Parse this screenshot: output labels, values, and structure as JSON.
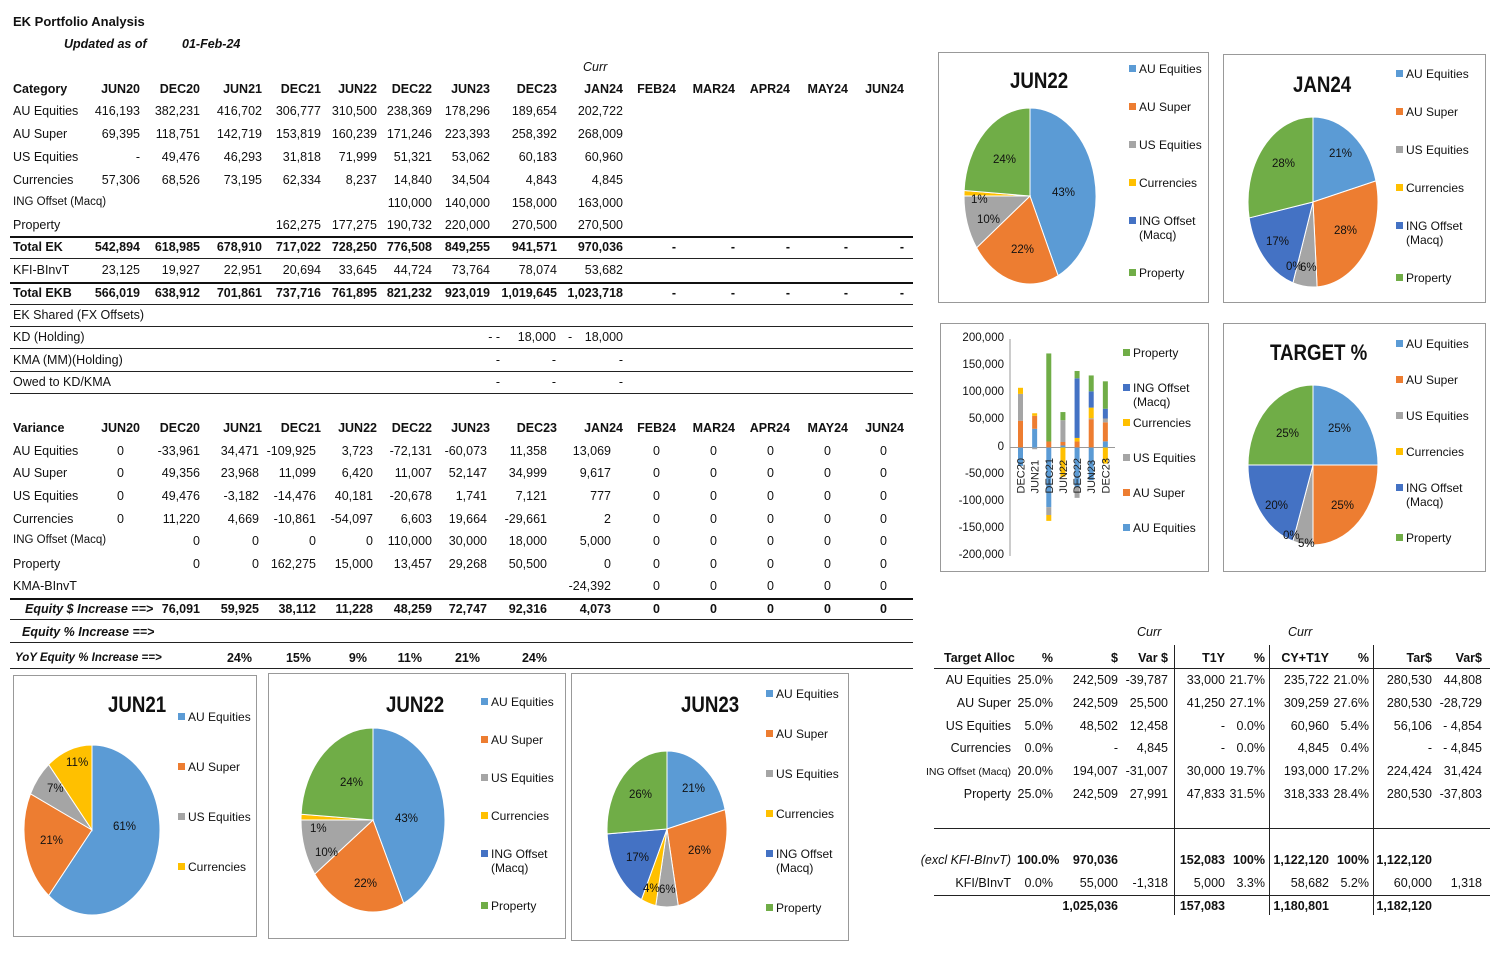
{
  "header": {
    "title": "EK Portfolio Analysis",
    "updated_label": "Updated as of",
    "updated_date": "01-Feb-24",
    "curr_label": "Curr"
  },
  "colors": {
    "au_equities": "#5b9bd5",
    "au_super": "#ed7d31",
    "us_equities": "#a5a5a5",
    "currencies": "#ffc000",
    "ing_offset": "#4472c4",
    "property": "#70ad47"
  },
  "periods": [
    "JUN20",
    "DEC20",
    "JUN21",
    "DEC21",
    "JUN22",
    "DEC22",
    "JUN23",
    "DEC23",
    "JAN24",
    "FEB24",
    "MAR24",
    "APR24",
    "MAY24",
    "JUN24"
  ],
  "holdings": {
    "header": "Category",
    "rows": [
      {
        "label": "AU Equities",
        "bold": false,
        "cells": [
          "416,193",
          "382,231",
          "416,702",
          "306,777",
          "310,500",
          "238,369",
          "178,296",
          "189,654",
          "202,722",
          "",
          "",
          "",
          "",
          ""
        ]
      },
      {
        "label": "AU Super",
        "bold": false,
        "cells": [
          "69,395",
          "118,751",
          "142,719",
          "153,819",
          "160,239",
          "171,246",
          "223,393",
          "258,392",
          "268,009",
          "",
          "",
          "",
          "",
          ""
        ]
      },
      {
        "label": "US Equities",
        "bold": false,
        "cells": [
          "-",
          "49,476",
          "46,293",
          "31,818",
          "71,999",
          "51,321",
          "53,062",
          "60,183",
          "60,960",
          "",
          "",
          "",
          "",
          ""
        ]
      },
      {
        "label": "Currencies",
        "bold": false,
        "cells": [
          "57,306",
          "68,526",
          "73,195",
          "62,334",
          "8,237",
          "14,840",
          "34,504",
          "4,843",
          "4,845",
          "",
          "",
          "",
          "",
          ""
        ]
      },
      {
        "label": "ING Offset (Macq)",
        "bold": false,
        "small": true,
        "cells": [
          "",
          "",
          "",
          "",
          "",
          "110,000",
          "140,000",
          "158,000",
          "163,000",
          "",
          "",
          "",
          "",
          ""
        ]
      },
      {
        "label": "Property",
        "bold": false,
        "cells": [
          "",
          "",
          "",
          "162,275",
          "177,275",
          "190,732",
          "220,000",
          "270,500",
          "270,500",
          "",
          "",
          "",
          "",
          ""
        ]
      },
      {
        "label": "Total EK",
        "bold": true,
        "cells": [
          "542,894",
          "618,985",
          "678,910",
          "717,022",
          "728,250",
          "776,508",
          "849,255",
          "941,571",
          "970,036",
          "-",
          "-",
          "-",
          "-",
          "-"
        ]
      },
      {
        "label": "KFI-BInvT",
        "bold": false,
        "cells": [
          "23,125",
          "19,927",
          "22,951",
          "20,694",
          "33,645",
          "44,724",
          "73,764",
          "78,074",
          "53,682",
          "",
          "",
          "",
          "",
          ""
        ]
      },
      {
        "label": "Total EKB",
        "bold": true,
        "cells": [
          "566,019",
          "638,912",
          "701,861",
          "737,716",
          "761,895",
          "821,232",
          "923,019",
          "1,019,645",
          "1,023,718",
          "-",
          "-",
          "-",
          "-",
          "-"
        ]
      }
    ]
  },
  "shared": {
    "title": "EK Shared (FX Offsets)",
    "rows": [
      {
        "label": "KD (Holding)",
        "cells": [
          "-  -",
          "18,000",
          "-",
          "18,000"
        ]
      },
      {
        "label": "KMA (MM)(Holding)",
        "cells": [
          "-",
          "-",
          "",
          "-"
        ]
      },
      {
        "label": "Owed to KD/KMA",
        "cells": [
          "-",
          "-",
          "",
          "-"
        ]
      }
    ]
  },
  "variance": {
    "header": "Variance",
    "rows": [
      {
        "label": "AU Equities",
        "cells": [
          "0",
          "-33,961",
          "34,471",
          "-109,925",
          "3,723",
          "-72,131",
          "-60,073",
          "11,358",
          "13,069",
          "0",
          "0",
          "0",
          "0",
          "0"
        ]
      },
      {
        "label": "AU Super",
        "cells": [
          "0",
          "49,356",
          "23,968",
          "11,099",
          "6,420",
          "11,007",
          "52,147",
          "34,999",
          "9,617",
          "0",
          "0",
          "0",
          "0",
          "0"
        ]
      },
      {
        "label": "US Equities",
        "cells": [
          "0",
          "49,476",
          "-3,182",
          "-14,476",
          "40,181",
          "-20,678",
          "1,741",
          "7,121",
          "777",
          "0",
          "0",
          "0",
          "0",
          "0"
        ]
      },
      {
        "label": "Currencies",
        "cells": [
          "0",
          "11,220",
          "4,669",
          "-10,861",
          "-54,097",
          "6,603",
          "19,664",
          "-29,661",
          "2",
          "0",
          "0",
          "0",
          "0",
          "0"
        ]
      },
      {
        "label": "ING Offset (Macq)",
        "small": true,
        "cells": [
          "",
          "0",
          "0",
          "0",
          "0",
          "110,000",
          "30,000",
          "18,000",
          "5,000",
          "0",
          "0",
          "0",
          "0",
          "0"
        ]
      },
      {
        "label": "Property",
        "cells": [
          "",
          "0",
          "0",
          "162,275",
          "15,000",
          "13,457",
          "29,268",
          "50,500",
          "0",
          "0",
          "0",
          "0",
          "0",
          "0"
        ]
      },
      {
        "label": "KMA-BInvT",
        "cells": [
          "",
          "",
          "",
          "",
          "",
          "",
          "",
          "",
          "-24,392",
          "0",
          "0",
          "0",
          "0",
          "0"
        ]
      }
    ],
    "equity_increase": {
      "label": "Equity $ Increase ==>",
      "cells": [
        "",
        "76,091",
        "59,925",
        "38,112",
        "11,228",
        "48,259",
        "72,747",
        "92,316",
        "4,073",
        "0",
        "0",
        "0",
        "0",
        "0"
      ]
    },
    "equity_pct": {
      "label": "Equity % Increase ==>"
    },
    "yoy": {
      "label": "YoY Equity % Increase ==>",
      "cells": [
        "",
        "",
        "24%",
        "15%",
        "9%",
        "11%",
        "21%",
        "24%",
        "",
        "",
        "",
        "",
        "",
        ""
      ]
    }
  },
  "legend_labels": [
    "AU Equities",
    "AU Super",
    "US Equities",
    "Currencies",
    "ING Offset (Macq)",
    "Property"
  ],
  "pies": [
    {
      "title": "JUN22",
      "labels": [
        "43%",
        "22%",
        "10%",
        "1%",
        "24%"
      ]
    },
    {
      "title": "JAN24",
      "labels": [
        "21%",
        "28%",
        "6%",
        "0%",
        "17%",
        "28%"
      ]
    },
    {
      "title": "TARGET %",
      "labels": [
        "25%",
        "25%",
        "5%",
        "0%",
        "20%",
        "25%"
      ]
    },
    {
      "title": "JUN21",
      "labels": [
        "61%",
        "21%",
        "7%",
        "11%"
      ]
    },
    {
      "title": "JUN22",
      "labels": [
        "43%",
        "22%",
        "10%",
        "1%",
        "24%"
      ]
    },
    {
      "title": "JUN23",
      "labels": [
        "21%",
        "26%",
        "6%",
        "4%",
        "17%",
        "26%"
      ]
    }
  ],
  "chart_data": [
    {
      "type": "pie",
      "title": "JUN22",
      "categories": [
        "AU Equities",
        "AU Super",
        "US Equities",
        "Currencies",
        "ING Offset (Macq)",
        "Property"
      ],
      "values": [
        43,
        22,
        10,
        1,
        0,
        24
      ]
    },
    {
      "type": "pie",
      "title": "JAN24",
      "categories": [
        "AU Equities",
        "AU Super",
        "US Equities",
        "Currencies",
        "ING Offset (Macq)",
        "Property"
      ],
      "values": [
        21,
        28,
        6,
        0,
        17,
        28
      ]
    },
    {
      "type": "pie",
      "title": "TARGET %",
      "categories": [
        "AU Equities",
        "AU Super",
        "US Equities",
        "Currencies",
        "ING Offset (Macq)",
        "Property"
      ],
      "values": [
        25,
        25,
        5,
        0,
        20,
        25
      ]
    },
    {
      "type": "pie",
      "title": "JUN21",
      "categories": [
        "AU Equities",
        "AU Super",
        "US Equities",
        "Currencies"
      ],
      "values": [
        61,
        21,
        7,
        11
      ]
    },
    {
      "type": "pie",
      "title": "JUN22",
      "categories": [
        "AU Equities",
        "AU Super",
        "US Equities",
        "Currencies",
        "ING Offset (Macq)",
        "Property"
      ],
      "values": [
        43,
        22,
        10,
        1,
        0,
        24
      ]
    },
    {
      "type": "pie",
      "title": "JUN23",
      "categories": [
        "AU Equities",
        "AU Super",
        "US Equities",
        "Currencies",
        "ING Offset (Macq)",
        "Property"
      ],
      "values": [
        21,
        26,
        6,
        4,
        17,
        26
      ]
    },
    {
      "type": "bar",
      "title": "",
      "stacked": true,
      "categories": [
        "DEC20",
        "JUN21",
        "DEC21",
        "JUN22",
        "DEC22",
        "JUN23",
        "DEC23"
      ],
      "ylim": [
        -200000,
        200000
      ],
      "yticks": [
        "200,000",
        "150,000",
        "100,000",
        "50,000",
        "0",
        "-50,000",
        "-100,000",
        "-150,000",
        "-200,000"
      ],
      "series": [
        {
          "name": "AU Equities",
          "values": [
            -33961,
            34471,
            -109925,
            3723,
            -72131,
            -60073,
            11358
          ]
        },
        {
          "name": "AU Super",
          "values": [
            49356,
            23968,
            11099,
            6420,
            11007,
            52147,
            34999
          ]
        },
        {
          "name": "US Equities",
          "values": [
            49476,
            -3182,
            -14476,
            40181,
            -20678,
            1741,
            7121
          ]
        },
        {
          "name": "Currencies",
          "values": [
            11220,
            4669,
            -10861,
            -54097,
            6603,
            19664,
            -29661
          ]
        },
        {
          "name": "ING Offset (Macq)",
          "values": [
            0,
            0,
            0,
            0,
            110000,
            30000,
            18000
          ]
        },
        {
          "name": "Property",
          "values": [
            0,
            0,
            162275,
            15000,
            13457,
            29268,
            50500
          ]
        }
      ],
      "legend": [
        "Property",
        "ING Offset (Macq)",
        "Currencies",
        "US Equities",
        "AU Super",
        "AU Equities"
      ]
    }
  ],
  "target": {
    "curr_label_1": "Curr",
    "curr_label_2": "Curr",
    "headers": [
      "Target Alloc",
      "%",
      "$",
      "Var $",
      "T1Y",
      "%",
      "CY+T1Y",
      "%",
      "Tar$",
      "Var$"
    ],
    "rows": [
      {
        "cells": [
          "AU Equities",
          "25.0%",
          "242,509",
          "-39,787",
          "33,000",
          "21.7%",
          "235,722",
          "21.0%",
          "280,530",
          "44,808"
        ]
      },
      {
        "cells": [
          "AU Super",
          "25.0%",
          "242,509",
          "25,500",
          "41,250",
          "27.1%",
          "309,259",
          "27.6%",
          "280,530",
          "-28,729"
        ]
      },
      {
        "cells": [
          "US Equities",
          "5.0%",
          "48,502",
          "12,458",
          "-",
          "0.0%",
          "60,960",
          "5.4%",
          "56,106",
          "- 4,854"
        ]
      },
      {
        "cells": [
          "Currencies",
          "0.0%",
          "-",
          "4,845",
          "-",
          "0.0%",
          "4,845",
          "0.4%",
          "-",
          "- 4,845"
        ]
      },
      {
        "cells": [
          "ING Offset (Macq)",
          "20.0%",
          "194,007",
          "-31,007",
          "30,000",
          "19.7%",
          "193,000",
          "17.2%",
          "224,424",
          "31,424"
        ],
        "small": true
      },
      {
        "cells": [
          "Property",
          "25.0%",
          "242,509",
          "27,991",
          "47,833",
          "31.5%",
          "318,333",
          "28.4%",
          "280,530",
          "-37,803"
        ]
      }
    ],
    "excl_row": {
      "cells": [
        "(excl KFI-BInvT)",
        "100.0%",
        "970,036",
        "",
        "152,083",
        "100%",
        "1,122,120",
        "100%",
        "1,122,120",
        ""
      ]
    },
    "kfi_row": {
      "cells": [
        "KFI/BInvT",
        "0.0%",
        "55,000",
        "-1,318",
        "5,000",
        "3.3%",
        "58,682",
        "5.2%",
        "60,000",
        "1,318"
      ]
    },
    "total_row": {
      "cells": [
        "",
        "",
        "1,025,036",
        "",
        "157,083",
        "",
        "1,180,801",
        "",
        "1,182,120",
        ""
      ]
    }
  }
}
